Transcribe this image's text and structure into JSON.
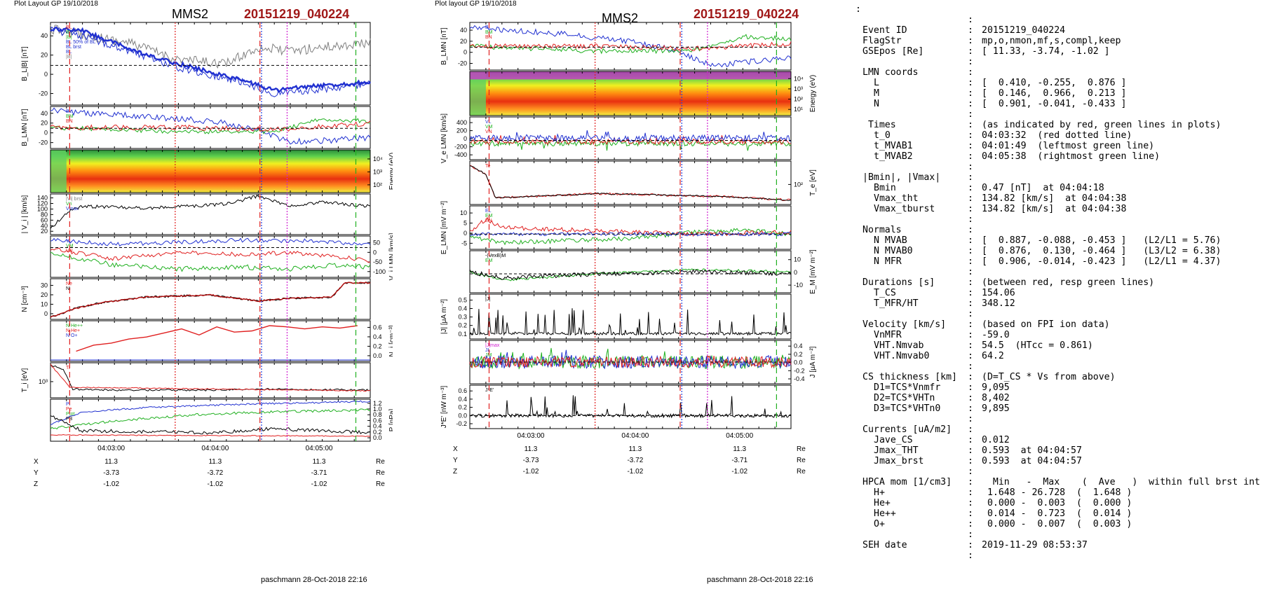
{
  "left": {
    "header": "Plot Layout GP 19/10/2018",
    "title": "MMS2",
    "event": "20151219_040224",
    "footer": "paschmann 28-Oct-2018 22:16",
    "panels": [
      {
        "id": "bl",
        "ylabel": "B_L|B| [nT]",
        "yticks": [
          "40",
          "20",
          "0",
          "-20"
        ],
        "legend": [
          "BL",
          "BL",
          "|B|",
          "BL 50% of BL",
          "BL brst",
          "BL",
          "|B|"
        ]
      },
      {
        "id": "blmn",
        "ylabel": "B_LMN [nT]",
        "yticks": [
          "40",
          "20",
          "0",
          "-20"
        ],
        "legend": [
          "BL",
          "BM",
          "BN"
        ]
      },
      {
        "id": "spec",
        "ylabel_right": "Energy (eV)",
        "yticks_right": [
          "10⁴",
          "10³",
          "10²"
        ]
      },
      {
        "id": "vi",
        "ylabel": "| V_i | [km/s]",
        "yticks": [
          "140",
          "120",
          "100",
          "80",
          "60",
          "40",
          "20"
        ],
        "legend": [
          "|Vi| brst",
          "Vn",
          "Vmax"
        ]
      },
      {
        "id": "vlmn",
        "ylabel_right": "V_i LMN [km/s]",
        "yticks_right": [
          "50",
          "0",
          "-50",
          "-100"
        ],
        "legend": [
          "VL",
          "VM",
          "VN"
        ]
      },
      {
        "id": "n",
        "ylabel": "N [cm⁻³]",
        "yticks": [
          "30",
          "20",
          "10",
          "0"
        ],
        "legend": [
          "Ne",
          "Ni"
        ]
      },
      {
        "id": "hpca",
        "ylabel_right": "N_i [cm⁻³]",
        "yticks_right": [
          "0.6",
          "0.4",
          "0.2",
          "0.0"
        ],
        "legend": [
          "N He++",
          "N He+",
          "N O+"
        ]
      },
      {
        "id": "ti",
        "ylabel": "T_i [eV]",
        "yticks": [
          "10³"
        ],
        "legend": [
          "Ti"
        ]
      },
      {
        "id": "p",
        "ylabel_right": "P [nPa]",
        "yticks_right": [
          "1.2",
          "1.0",
          "0.8",
          "0.6",
          "0.4",
          "0.2",
          "0.0"
        ],
        "legend": [
          "Pi",
          "Pe",
          "Ptot",
          "PB"
        ]
      }
    ],
    "xticks": [
      "04:03:00",
      "04:04:00",
      "04:05:00"
    ],
    "pos": [
      {
        "label": "X",
        "vals": [
          "11.3",
          "11.3",
          "11.3"
        ],
        "unit": "Re"
      },
      {
        "label": "Y",
        "vals": [
          "-3.73",
          "-3.72",
          "-3.71"
        ],
        "unit": "Re"
      },
      {
        "label": "Z",
        "vals": [
          "-1.02",
          "-1.02",
          "-1.02"
        ],
        "unit": "Re"
      }
    ]
  },
  "middle": {
    "header": "Plot layout GP 19/10/2018",
    "title": "MMS2",
    "event": "20151219_040224",
    "footer": "paschmann 28-Oct-2018 22:16",
    "panels": [
      {
        "id": "blmn",
        "ylabel": "B_LMN [nT]",
        "yticks": [
          "40",
          "20",
          "0",
          "-20"
        ],
        "legend": [
          "BL",
          "BM",
          "BN"
        ]
      },
      {
        "id": "spec",
        "ylabel_right": "Energy (eV)",
        "yticks_right": [
          "10⁴",
          "10³",
          "10²",
          "10¹"
        ]
      },
      {
        "id": "ve",
        "ylabel": "V_e LMN [km/s]",
        "yticks": [
          "400",
          "200",
          "0",
          "-200",
          "-400"
        ],
        "legend": [
          "VL",
          "VM",
          "VN"
        ]
      },
      {
        "id": "te",
        "ylabel_right": "T_e [eV]",
        "yticks_right": [
          "10²"
        ],
        "legend": [
          "Te"
        ]
      },
      {
        "id": "elmn",
        "ylabel": "E_LMN [mV m⁻²]",
        "yticks": [
          "10",
          "5",
          "0",
          "-5"
        ],
        "legend": [
          "EL",
          "EM",
          "EN"
        ]
      },
      {
        "id": "em",
        "ylabel_right": "E_M [mV m⁻²]",
        "yticks_right": [
          "10",
          "0",
          "-10"
        ],
        "legend": [
          "-(VexB)M",
          "EM"
        ]
      },
      {
        "id": "j",
        "ylabel": "|J| [μA m⁻²]",
        "yticks": [
          "0.5",
          "0.4",
          "0.3",
          "0.2",
          "0.1"
        ],
        "legend": [
          "|J|"
        ]
      },
      {
        "id": "jlmn",
        "ylabel_right": "J [μA m⁻²]",
        "yticks_right": [
          "0.4",
          "0.2",
          "0.0",
          "-0.2",
          "-0.4"
        ],
        "legend": [
          "|J|max",
          "JL",
          "JM",
          "JN"
        ]
      },
      {
        "id": "je",
        "ylabel": "J*E' [nW m⁻³]",
        "yticks": [
          "0.6",
          "0.4",
          "0.2",
          "0.0",
          "-0.2"
        ],
        "legend": [
          "J*E'"
        ]
      }
    ],
    "xticks": [
      "04:03:00",
      "04:04:00",
      "04:05:00"
    ],
    "pos": [
      {
        "label": "X",
        "vals": [
          "11.3",
          "11.3",
          "11.3"
        ],
        "unit": "Re"
      },
      {
        "label": "Y",
        "vals": [
          "-3.73",
          "-3.72",
          "-3.71"
        ],
        "unit": "Re"
      },
      {
        "label": "Z",
        "vals": [
          "-1.02",
          "-1.02",
          "-1.02"
        ],
        "unit": "Re"
      }
    ]
  },
  "info": [
    {
      "t": "blank"
    },
    {
      "t": "row",
      "label": "Event ID",
      "val": "20151219_040224"
    },
    {
      "t": "row",
      "label": "FlagStr",
      "val": "mp,o,nmon,mf,s,compl,keep"
    },
    {
      "t": "row",
      "label": "GSEpos [Re]",
      "val": "[ 11.33, -3.74, -1.02 ]"
    },
    {
      "t": "blank"
    },
    {
      "t": "row",
      "label": "LMN coords",
      "val": ""
    },
    {
      "t": "sub",
      "label": "L",
      "val": "[  0.410, -0.255,  0.876 ]"
    },
    {
      "t": "sub",
      "label": "M",
      "val": "[  0.146,  0.966,  0.213 ]"
    },
    {
      "t": "sub",
      "label": "N",
      "val": "[  0.901, -0.041, -0.433 ]"
    },
    {
      "t": "blank"
    },
    {
      "t": "row",
      "label": " Times",
      "val": "(as indicated by red, green lines in plots)"
    },
    {
      "t": "sub",
      "label": "t_0",
      "val": "04:03:32  (red dotted line)"
    },
    {
      "t": "sub",
      "label": "t_MVAB1",
      "val": "04:01:49  (leftmost green line)"
    },
    {
      "t": "sub",
      "label": "t_MVAB2",
      "val": "04:05:38  (rightmost green line)"
    },
    {
      "t": "blank"
    },
    {
      "t": "row",
      "label": "|Bmin|, |Vmax|",
      "val": ""
    },
    {
      "t": "sub",
      "label": "Bmin",
      "val": "0.47 [nT]  at 04:04:18"
    },
    {
      "t": "sub",
      "label": "Vmax_tht",
      "val": "134.82 [km/s]  at 04:04:38"
    },
    {
      "t": "sub",
      "label": "Vmax_tburst",
      "val": "134.82 [km/s]  at 04:04:38"
    },
    {
      "t": "blank"
    },
    {
      "t": "row",
      "label": "Normals",
      "val": ""
    },
    {
      "t": "sub",
      "label": "N MVAB",
      "val": "[  0.887, -0.088, -0.453 ]   (L2/L1 = 5.76)"
    },
    {
      "t": "sub",
      "label": "N MVAB0",
      "val": "[  0.876,  0.130, -0.464 ]   (L3/L2 = 6.38)"
    },
    {
      "t": "sub",
      "label": "N MFR",
      "val": "[  0.906, -0.014, -0.423 ]   (L2/L1 = 4.37)"
    },
    {
      "t": "blank"
    },
    {
      "t": "row",
      "label": "Durations [s]",
      "val": "(between red, resp green lines)"
    },
    {
      "t": "sub",
      "label": "T_CS",
      "val": "154.06"
    },
    {
      "t": "sub",
      "label": "T_MFR/HT",
      "val": "348.12"
    },
    {
      "t": "blank"
    },
    {
      "t": "row",
      "label": "Velocity [km/s]",
      "val": "(based on FPI ion data)"
    },
    {
      "t": "sub",
      "label": "VnMFR",
      "val": "-59.0"
    },
    {
      "t": "sub",
      "label": "VHT.Nmvab",
      "val": "54.5  (HTcc = 0.861)"
    },
    {
      "t": "sub",
      "label": "VHT.Nmvab0",
      "val": "64.2"
    },
    {
      "t": "blank"
    },
    {
      "t": "row",
      "label": "CS thickness [km]",
      "val": "(D=T_CS * Vs from above)"
    },
    {
      "t": "sub",
      "label": "D1=TCS*Vnmfr",
      "val": "9,095"
    },
    {
      "t": "sub",
      "label": "D2=TCS*VHTn",
      "val": "8,402"
    },
    {
      "t": "sub",
      "label": "D3=TCS*VHTn0",
      "val": "9,895"
    },
    {
      "t": "blank"
    },
    {
      "t": "row",
      "label": "Currents [uA/m2]",
      "val": ""
    },
    {
      "t": "sub",
      "label": "Jave_CS",
      "val": "0.012"
    },
    {
      "t": "sub",
      "label": "Jmax_THT",
      "val": "0.593  at 04:04:57"
    },
    {
      "t": "sub",
      "label": "Jmax_brst",
      "val": "0.593  at 04:04:57"
    },
    {
      "t": "blank"
    },
    {
      "t": "row",
      "label": "HPCA mom [1/cm3]",
      "val": "  Min   -  Max    (  Ave   )  within full brst int"
    },
    {
      "t": "sub",
      "label": "H+",
      "val": " 1.648 - 26.728  (  1.648 )"
    },
    {
      "t": "sub",
      "label": "He+",
      "val": " 0.000 -  0.003  (  0.000 )"
    },
    {
      "t": "sub",
      "label": "He++",
      "val": " 0.014 -  0.723  (  0.014 )"
    },
    {
      "t": "sub",
      "label": "O+",
      "val": " 0.000 -  0.007  (  0.003 )"
    },
    {
      "t": "blank"
    },
    {
      "t": "row",
      "label": "SEH date",
      "val": "2019-11-29 08:53:37"
    },
    {
      "t": "blank"
    }
  ],
  "chart_data": [
    {
      "type": "line",
      "title": "MMS2 20151219_040224",
      "x_range": [
        "04:02:24",
        "04:06:10"
      ],
      "xticks": [
        "04:03:00",
        "04:04:00",
        "04:05:00"
      ],
      "series": [
        {
          "name": "BL",
          "x": [
            "04:02:30",
            "04:03:00",
            "04:03:30",
            "04:04:00",
            "04:04:30",
            "04:05:00",
            "04:05:30",
            "04:06:00"
          ],
          "values": [
            42,
            35,
            25,
            15,
            0,
            -25,
            -20,
            -12
          ]
        },
        {
          "name": "|B|",
          "x": [
            "04:02:30",
            "04:03:00",
            "04:03:30",
            "04:04:00",
            "04:04:30",
            "04:05:00",
            "04:05:30",
            "04:06:00"
          ],
          "values": [
            42,
            35,
            28,
            22,
            30,
            40,
            38,
            42
          ]
        },
        {
          "name": "N",
          "x": [
            "04:02:30",
            "04:03:00",
            "04:03:30",
            "04:04:00",
            "04:04:30",
            "04:05:00",
            "04:05:30",
            "04:06:00"
          ],
          "values": [
            5,
            13,
            17,
            19,
            19,
            15,
            19,
            30
          ]
        },
        {
          "name": "|Vi|",
          "x": [
            "04:02:30",
            "04:03:00",
            "04:03:30",
            "04:04:00",
            "04:04:30",
            "04:05:00",
            "04:05:30",
            "04:06:00"
          ],
          "values": [
            60,
            100,
            95,
            100,
            110,
            125,
            100,
            95
          ]
        },
        {
          "name": "HPCA N He++",
          "x": [
            "04:02:45",
            "04:03:00",
            "04:03:15",
            "04:03:30",
            "04:03:45",
            "04:04:00",
            "04:04:15",
            "04:04:30",
            "04:04:45",
            "04:05:00",
            "04:05:15",
            "04:05:30",
            "04:05:45"
          ],
          "values": [
            0.15,
            0.3,
            0.25,
            0.35,
            0.55,
            0.45,
            0.6,
            0.45,
            0.45,
            0.5,
            0.45,
            0.55,
            0.5
          ]
        },
        {
          "name": "|J|",
          "x": [
            "04:02:30",
            "04:03:00",
            "04:03:30",
            "04:04:00",
            "04:04:30",
            "04:04:57",
            "04:05:30",
            "04:06:00"
          ],
          "values": [
            0.1,
            0.15,
            0.1,
            0.1,
            0.2,
            0.593,
            0.25,
            0.15
          ]
        }
      ]
    }
  ]
}
